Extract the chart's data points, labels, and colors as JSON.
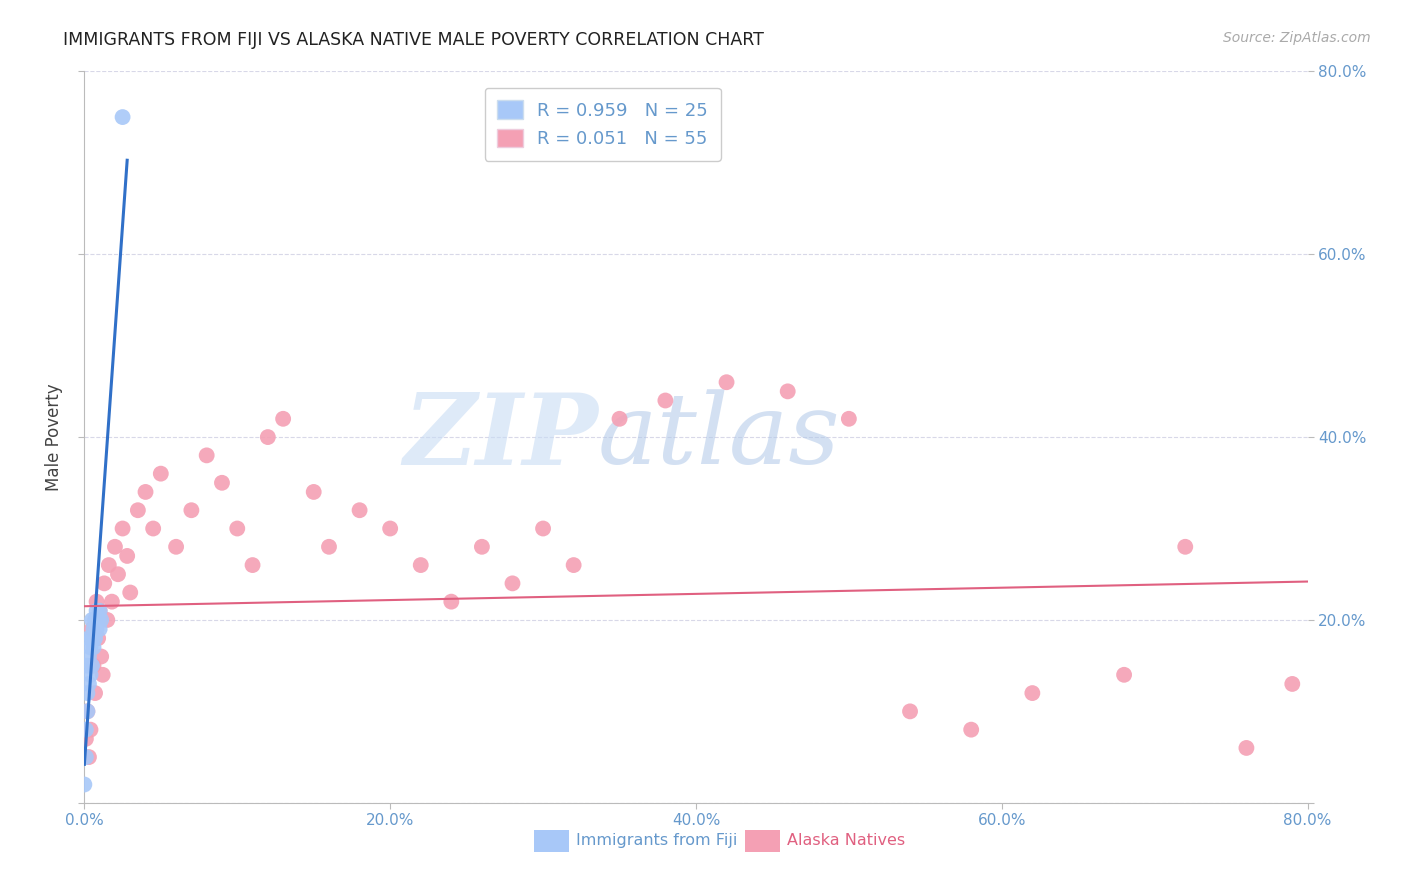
{
  "title": "IMMIGRANTS FROM FIJI VS ALASKA NATIVE MALE POVERTY CORRELATION CHART",
  "source": "Source: ZipAtlas.com",
  "ylabel": "Male Poverty",
  "legend_fiji_r": "R = 0.959",
  "legend_fiji_n": "N = 25",
  "legend_alaska_r": "R = 0.051",
  "legend_alaska_n": "N = 55",
  "fiji_color": "#a8c8f8",
  "alaska_color": "#f4a0b4",
  "fiji_line_color": "#3070c8",
  "alaska_line_color": "#e06080",
  "fiji_scatter_x": [
    0.0,
    0.001,
    0.001,
    0.002,
    0.002,
    0.002,
    0.003,
    0.003,
    0.003,
    0.004,
    0.004,
    0.005,
    0.005,
    0.005,
    0.006,
    0.006,
    0.007,
    0.007,
    0.008,
    0.008,
    0.009,
    0.01,
    0.01,
    0.011,
    0.025
  ],
  "fiji_scatter_y": [
    0.02,
    0.05,
    0.08,
    0.1,
    0.12,
    0.15,
    0.13,
    0.16,
    0.18,
    0.14,
    0.17,
    0.15,
    0.18,
    0.2,
    0.17,
    0.19,
    0.18,
    0.2,
    0.19,
    0.21,
    0.2,
    0.19,
    0.21,
    0.2,
    0.75
  ],
  "alaska_scatter_x": [
    0.001,
    0.002,
    0.003,
    0.004,
    0.005,
    0.006,
    0.007,
    0.008,
    0.009,
    0.01,
    0.011,
    0.012,
    0.013,
    0.015,
    0.016,
    0.018,
    0.02,
    0.022,
    0.025,
    0.028,
    0.03,
    0.035,
    0.04,
    0.045,
    0.05,
    0.06,
    0.07,
    0.08,
    0.09,
    0.1,
    0.11,
    0.12,
    0.13,
    0.15,
    0.16,
    0.18,
    0.2,
    0.22,
    0.24,
    0.26,
    0.28,
    0.3,
    0.32,
    0.35,
    0.38,
    0.42,
    0.46,
    0.5,
    0.54,
    0.58,
    0.62,
    0.68,
    0.72,
    0.76,
    0.79
  ],
  "alaska_scatter_y": [
    0.07,
    0.1,
    0.05,
    0.08,
    0.19,
    0.15,
    0.12,
    0.22,
    0.18,
    0.21,
    0.16,
    0.14,
    0.24,
    0.2,
    0.26,
    0.22,
    0.28,
    0.25,
    0.3,
    0.27,
    0.23,
    0.32,
    0.34,
    0.3,
    0.36,
    0.28,
    0.32,
    0.38,
    0.35,
    0.3,
    0.26,
    0.4,
    0.42,
    0.34,
    0.28,
    0.32,
    0.3,
    0.26,
    0.22,
    0.28,
    0.24,
    0.3,
    0.26,
    0.42,
    0.44,
    0.46,
    0.45,
    0.42,
    0.1,
    0.08,
    0.12,
    0.14,
    0.28,
    0.06,
    0.13
  ],
  "fiji_regression": [
    0.0,
    0.028,
    0.0,
    0.82
  ],
  "alaska_regression_start_y": 0.215,
  "alaska_regression_end_y": 0.242,
  "xmin": 0.0,
  "xmax": 0.8,
  "ymin": 0.0,
  "ymax": 0.8,
  "xticks": [
    0.0,
    0.2,
    0.4,
    0.6,
    0.8
  ],
  "xticklabels": [
    "0.0%",
    "20.0%",
    "40.0%",
    "60.0%",
    "80.0%"
  ],
  "yticks": [
    0.0,
    0.2,
    0.4,
    0.6,
    0.8
  ],
  "yticklabels_right": [
    "",
    "20.0%",
    "40.0%",
    "60.0%",
    "80.0%"
  ],
  "watermark_zip": "ZIP",
  "watermark_atlas": "atlas",
  "background_color": "#ffffff",
  "grid_color": "#d8d8e8",
  "title_color": "#222222",
  "axis_color": "#bbbbbb",
  "tick_label_color": "#6699cc",
  "source_color": "#aaaaaa"
}
